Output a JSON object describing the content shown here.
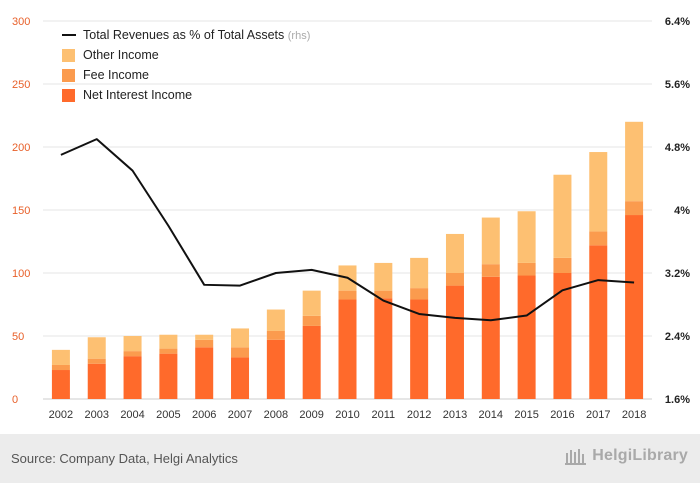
{
  "chart_data": {
    "type": "bar",
    "stacked": true,
    "categories": [
      "2002",
      "2003",
      "2004",
      "2005",
      "2006",
      "2007",
      "2008",
      "2009",
      "2010",
      "2011",
      "2012",
      "2013",
      "2014",
      "2015",
      "2016",
      "2017",
      "2018"
    ],
    "series": [
      {
        "name": "Net Interest Income",
        "color": "#ff6a2b",
        "values": [
          23,
          28,
          34,
          36,
          41,
          33,
          47,
          58,
          79,
          80,
          79,
          90,
          97,
          98,
          100,
          122,
          146
        ]
      },
      {
        "name": "Fee Income",
        "color": "#fb9b4e",
        "values": [
          4,
          4,
          4,
          4,
          6,
          8,
          7,
          8,
          7,
          6,
          9,
          10,
          10,
          10,
          12,
          11,
          11
        ]
      },
      {
        "name": "Other Income",
        "color": "#fdc072",
        "values": [
          12,
          17,
          12,
          11,
          4,
          15,
          17,
          20,
          20,
          22,
          24,
          31,
          37,
          41,
          66,
          63,
          63
        ]
      }
    ],
    "line": {
      "name": "Total Revenues as % of Total Assets",
      "name_suffix": "(rhs)",
      "color": "#111111",
      "axis": "right",
      "unit": "%",
      "values": [
        4.7,
        4.9,
        4.5,
        3.8,
        3.05,
        3.04,
        3.2,
        3.24,
        3.14,
        2.85,
        2.68,
        2.63,
        2.6,
        2.66,
        2.98,
        3.11,
        3.08
      ]
    },
    "y_left": {
      "min": 0,
      "max": 300,
      "ticks": [
        "0",
        "50",
        "100",
        "150",
        "200",
        "250",
        "300"
      ],
      "color": "#e8602a"
    },
    "y_right": {
      "min": 1.6,
      "max": 6.4,
      "ticks": [
        "1.6%",
        "2.4%",
        "3.2%",
        "4%",
        "4.8%",
        "5.6%",
        "6.4%"
      ]
    },
    "grid": true,
    "legend": {
      "position": "top-left",
      "entries": [
        "Total Revenues as % of Total Assets",
        "Other Income",
        "Fee Income",
        "Net Interest Income"
      ]
    }
  },
  "footer": {
    "source": "Source: Company Data, Helgi Analytics",
    "brand": "HelgiLibrary"
  }
}
